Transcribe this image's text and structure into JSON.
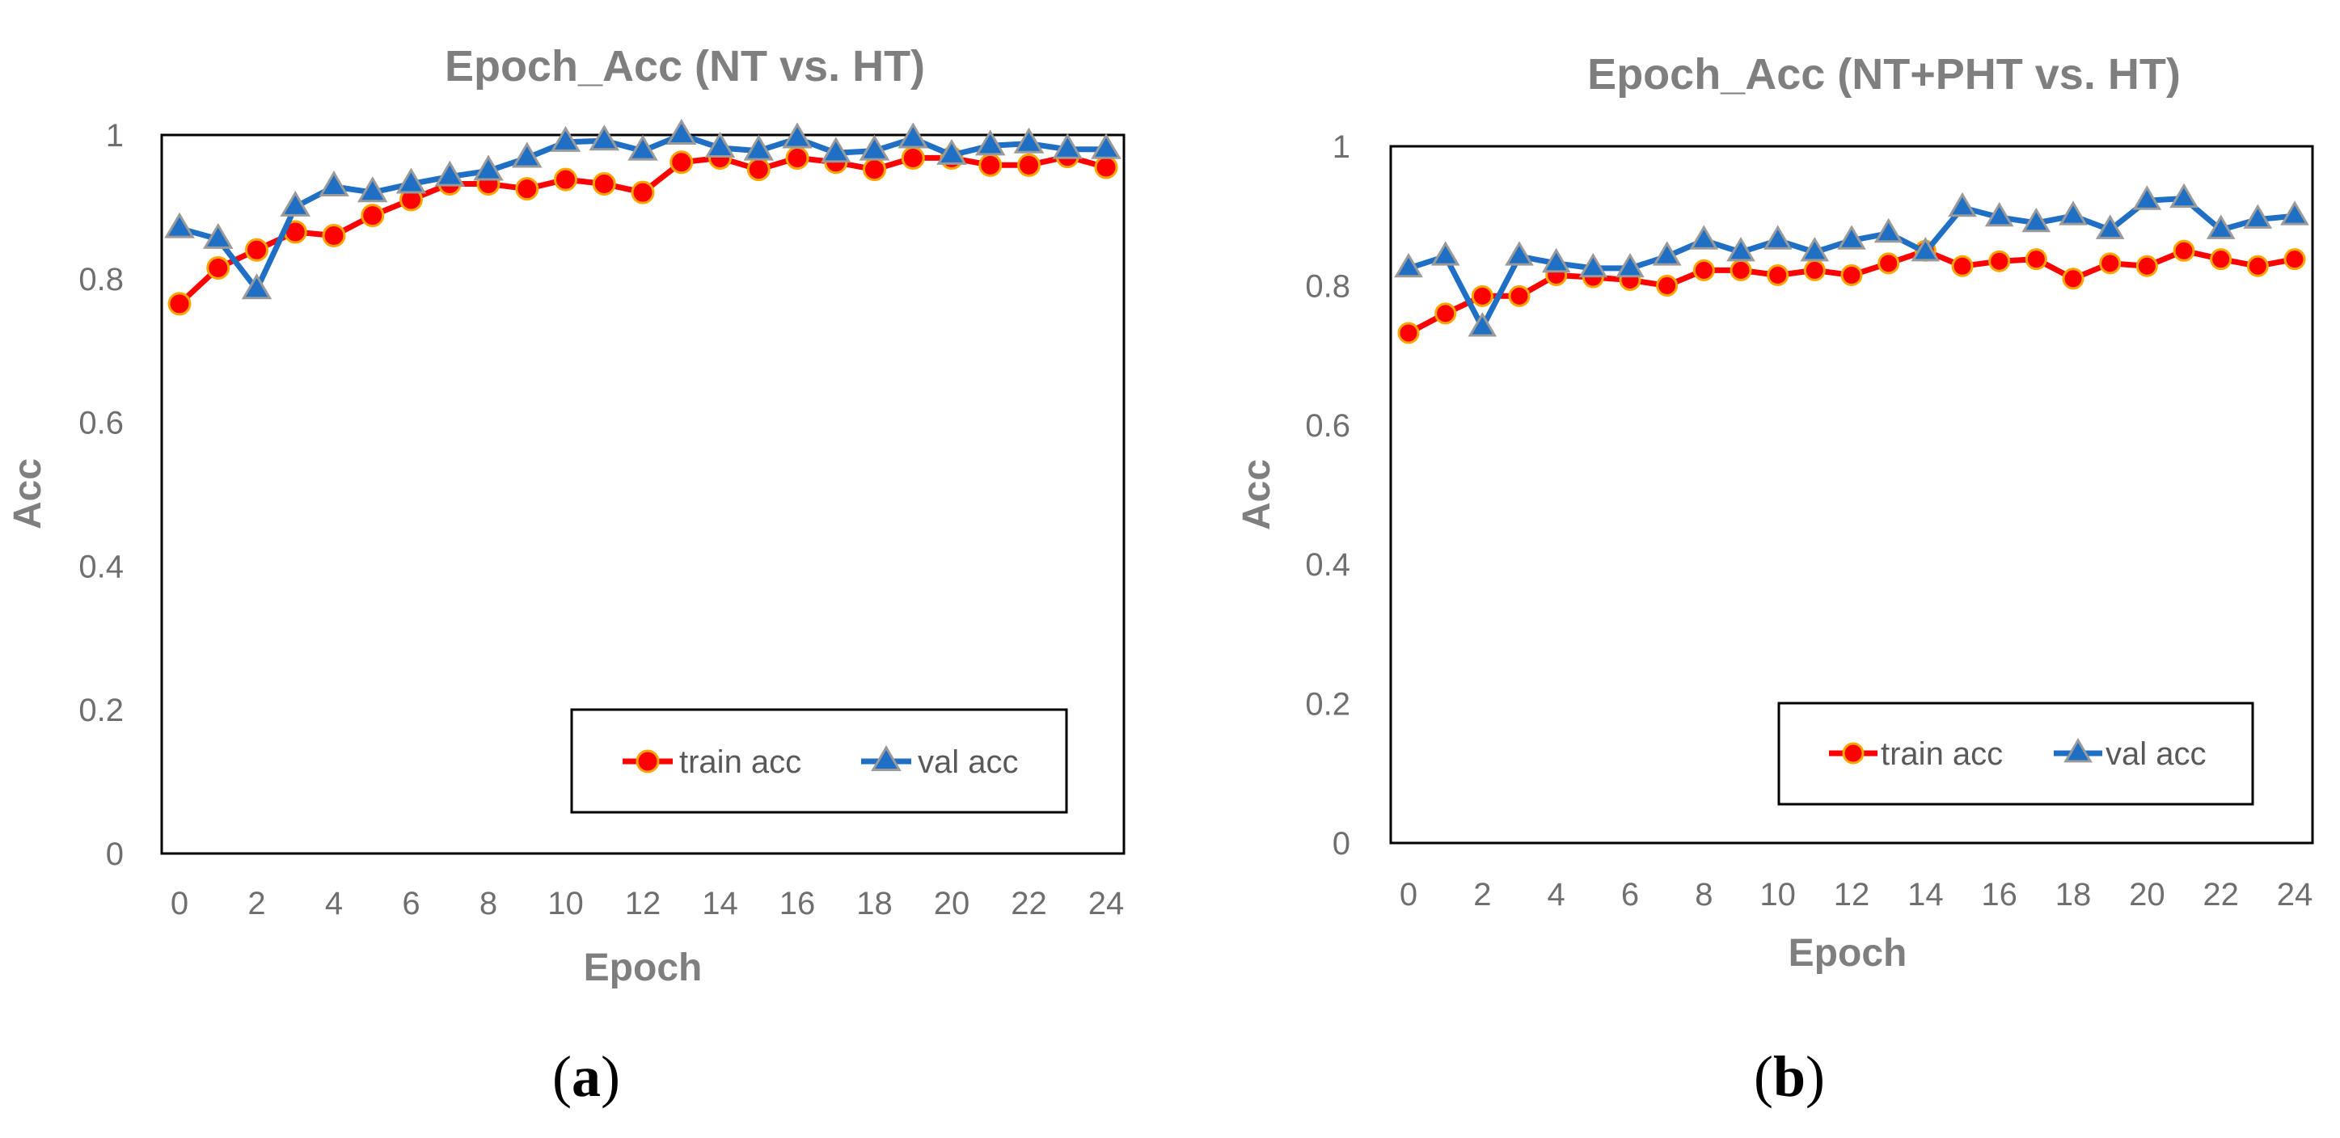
{
  "chart_data": [
    {
      "type": "line",
      "panel_label": "(a)",
      "panel_open": "(",
      "panel_letter": "a",
      "panel_close": ")",
      "title": "Epoch_Acc (NT vs. HT)",
      "xlabel": "Epoch",
      "ylabel": "Acc",
      "xlim": [
        0,
        24
      ],
      "ylim": [
        0,
        1
      ],
      "xticks": [
        "0",
        "2",
        "4",
        "6",
        "8",
        "10",
        "12",
        "14",
        "16",
        "18",
        "20",
        "22",
        "24"
      ],
      "yticks": [
        "0",
        "0.2",
        "0.4",
        "0.6",
        "0.8",
        "1"
      ],
      "grid": false,
      "legend_position": "bottom-right",
      "x": [
        0,
        1,
        2,
        3,
        4,
        5,
        6,
        7,
        8,
        9,
        10,
        11,
        12,
        13,
        14,
        15,
        16,
        17,
        18,
        19,
        20,
        21,
        22,
        23,
        24
      ],
      "series": [
        {
          "name": "train acc",
          "color": "#ff0000",
          "line_color": "#ff0000",
          "marker_edge": "#ffa500",
          "marker": "circle",
          "values": [
            0.765,
            0.815,
            0.84,
            0.865,
            0.86,
            0.888,
            0.91,
            0.932,
            0.932,
            0.925,
            0.938,
            0.932,
            0.92,
            0.962,
            0.968,
            0.952,
            0.968,
            0.962,
            0.952,
            0.968,
            0.968,
            0.958,
            0.958,
            0.97,
            0.955
          ]
        },
        {
          "name": "val acc",
          "color": "#1f6fc5",
          "line_color": "#1f6fc5",
          "marker_edge": "#9a9a9a",
          "marker": "triangle",
          "values": [
            0.87,
            0.855,
            0.785,
            0.9,
            0.928,
            0.92,
            0.932,
            0.942,
            0.95,
            0.968,
            0.99,
            0.992,
            0.978,
            1.0,
            0.982,
            0.978,
            0.995,
            0.975,
            0.978,
            0.995,
            0.972,
            0.985,
            0.988,
            0.98,
            0.98
          ]
        }
      ]
    },
    {
      "type": "line",
      "panel_label": "(b)",
      "panel_open": "(",
      "panel_letter": "b",
      "panel_close": ")",
      "title": "Epoch_Acc (NT+PHT vs. HT)",
      "xlabel": "Epoch",
      "ylabel": "Acc",
      "xlim": [
        0,
        24
      ],
      "ylim": [
        0,
        1
      ],
      "xticks": [
        "0",
        "2",
        "4",
        "6",
        "8",
        "10",
        "12",
        "14",
        "16",
        "18",
        "20",
        "22",
        "24"
      ],
      "yticks": [
        "0",
        "0.2",
        "0.4",
        "0.6",
        "0.8",
        "1"
      ],
      "grid": false,
      "legend_position": "bottom-right",
      "x": [
        0,
        1,
        2,
        3,
        4,
        5,
        6,
        7,
        8,
        9,
        10,
        11,
        12,
        13,
        14,
        15,
        16,
        17,
        18,
        19,
        20,
        21,
        22,
        23,
        24
      ],
      "series": [
        {
          "name": "train acc",
          "color": "#ff0000",
          "line_color": "#ff0000",
          "marker_edge": "#ffa500",
          "marker": "circle",
          "values": [
            0.732,
            0.76,
            0.785,
            0.785,
            0.815,
            0.812,
            0.808,
            0.8,
            0.822,
            0.822,
            0.815,
            0.822,
            0.815,
            0.832,
            0.85,
            0.828,
            0.835,
            0.838,
            0.81,
            0.832,
            0.828,
            0.85,
            0.838,
            0.828,
            0.838
          ]
        },
        {
          "name": "val acc",
          "color": "#1f6fc5",
          "line_color": "#1f6fc5",
          "marker_edge": "#9a9a9a",
          "marker": "triangle",
          "values": [
            0.825,
            0.842,
            0.74,
            0.842,
            0.832,
            0.825,
            0.825,
            0.842,
            0.865,
            0.848,
            0.865,
            0.848,
            0.865,
            0.875,
            0.848,
            0.912,
            0.898,
            0.89,
            0.9,
            0.88,
            0.922,
            0.925,
            0.88,
            0.895,
            0.9
          ]
        }
      ]
    }
  ]
}
